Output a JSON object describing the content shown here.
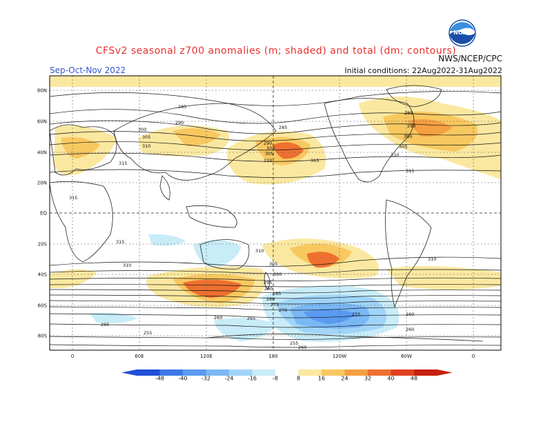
{
  "header": {
    "title": "CFSv2 seasonal z700 anomalies (m; shaded) and total (dm; contours)",
    "season": "Sep-Oct-Nov 2022",
    "agency": "NWS/NCEP/CPC",
    "initial_conditions": "Initial conditions: 22Aug2022-31Aug2022",
    "logo_text": "NOAA"
  },
  "axes": {
    "lat_labels": [
      "80N",
      "60N",
      "40N",
      "20N",
      "EQ",
      "20S",
      "40S",
      "60S",
      "80S"
    ],
    "lon_labels": [
      "0",
      "60E",
      "120E",
      "180",
      "120W",
      "60W",
      "0"
    ]
  },
  "colorbar": {
    "ticks": [
      "-48",
      "-40",
      "-32",
      "-24",
      "-16",
      "-8",
      "8",
      "16",
      "24",
      "32",
      "40",
      "48"
    ],
    "colors": [
      "#2050d8",
      "#3c78e8",
      "#5a9af0",
      "#7ab8f5",
      "#a0d4f8",
      "#c8ecf8",
      "#ffffff",
      "#fbe8a0",
      "#f8c860",
      "#f5a040",
      "#ee7030",
      "#e04020",
      "#c82010"
    ]
  },
  "contour_labels": [
    {
      "text": "285"
    },
    {
      "text": "290"
    },
    {
      "text": "300"
    },
    {
      "text": "305"
    },
    {
      "text": "310"
    },
    {
      "text": "315"
    },
    {
      "text": "285"
    },
    {
      "text": "290"
    },
    {
      "text": "300"
    },
    {
      "text": "305"
    },
    {
      "text": "310"
    },
    {
      "text": "315"
    },
    {
      "text": "285"
    },
    {
      "text": "290"
    },
    {
      "text": "300"
    },
    {
      "text": "305"
    },
    {
      "text": "310"
    },
    {
      "text": "315"
    },
    {
      "text": "315"
    },
    {
      "text": "315"
    },
    {
      "text": "310"
    },
    {
      "text": "310"
    },
    {
      "text": "310"
    },
    {
      "text": "305"
    },
    {
      "text": "300"
    },
    {
      "text": "295"
    },
    {
      "text": "290"
    },
    {
      "text": "285"
    },
    {
      "text": "280"
    },
    {
      "text": "275"
    },
    {
      "text": "270"
    },
    {
      "text": "265"
    },
    {
      "text": "260"
    },
    {
      "text": "255"
    },
    {
      "text": "260"
    },
    {
      "text": "265"
    },
    {
      "text": "255"
    },
    {
      "text": "260"
    },
    {
      "text": "255"
    },
    {
      "text": "260"
    }
  ]
}
